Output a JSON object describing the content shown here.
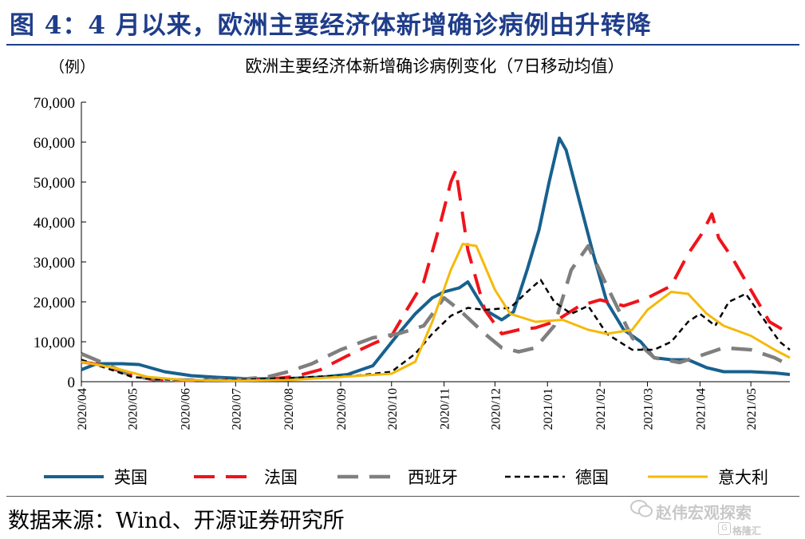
{
  "figure_title": "图 4：4 月以来，欧洲主要经济体新增确诊病例由升转降",
  "source_text": "数据来源：Wind、开源证券研究所",
  "watermark": {
    "main": "赵伟宏观探索",
    "sub": "格隆汇",
    "g_glyph": "G"
  },
  "colors": {
    "title": "#1f3d8a",
    "uk": "#17618e",
    "france": "#f0131a",
    "spain": "#7f7f7f",
    "germany": "#000000",
    "italy": "#f5b90a"
  },
  "chart_data": {
    "type": "line",
    "title": "欧洲主要经济体新增确诊病例变化（7日移动均值）",
    "ylabel": "（例）",
    "xlabel": "",
    "ylim": [
      0,
      70000
    ],
    "yticks": [
      0,
      10000,
      20000,
      30000,
      40000,
      50000,
      60000,
      70000
    ],
    "ytick_labels": [
      "0",
      "10,000",
      "20,000",
      "30,000",
      "40,000",
      "50,000",
      "60,000",
      "70,000"
    ],
    "xlim": [
      "2020-04-01",
      "2021-05-24"
    ],
    "xtick_labels": [
      "2020/04",
      "2020/05",
      "2020/06",
      "2020/07",
      "2020/08",
      "2020/09",
      "2020/10",
      "2020/11",
      "2020/12",
      "2021/01",
      "2021/02",
      "2021/03",
      "2021/04",
      "2021/05"
    ],
    "grid": false,
    "legend_position": "bottom",
    "series": [
      {
        "name": "英国",
        "key": "uk",
        "dash": "solid",
        "points": [
          [
            "2020-04-01",
            3000
          ],
          [
            "2020-04-10",
            4500
          ],
          [
            "2020-04-25",
            4500
          ],
          [
            "2020-05-05",
            4300
          ],
          [
            "2020-05-20",
            2500
          ],
          [
            "2020-06-05",
            1500
          ],
          [
            "2020-06-20",
            1100
          ],
          [
            "2020-07-10",
            700
          ],
          [
            "2020-08-01",
            800
          ],
          [
            "2020-08-20",
            1100
          ],
          [
            "2020-09-05",
            1800
          ],
          [
            "2020-09-20",
            4000
          ],
          [
            "2020-10-05",
            12000
          ],
          [
            "2020-10-15",
            17000
          ],
          [
            "2020-10-25",
            21000
          ],
          [
            "2020-11-01",
            22500
          ],
          [
            "2020-11-10",
            23500
          ],
          [
            "2020-11-15",
            25000
          ],
          [
            "2020-11-25",
            18000
          ],
          [
            "2020-12-05",
            15500
          ],
          [
            "2020-12-12",
            17500
          ],
          [
            "2020-12-20",
            28000
          ],
          [
            "2020-12-27",
            38000
          ],
          [
            "2021-01-02",
            50000
          ],
          [
            "2021-01-08",
            61000
          ],
          [
            "2021-01-12",
            58000
          ],
          [
            "2021-01-20",
            45000
          ],
          [
            "2021-01-28",
            32000
          ],
          [
            "2021-02-05",
            20000
          ],
          [
            "2021-02-15",
            13000
          ],
          [
            "2021-02-25",
            10000
          ],
          [
            "2021-03-05",
            6000
          ],
          [
            "2021-03-15",
            5500
          ],
          [
            "2021-03-25",
            5500
          ],
          [
            "2021-04-05",
            3500
          ],
          [
            "2021-04-15",
            2500
          ],
          [
            "2021-05-01",
            2500
          ],
          [
            "2021-05-15",
            2200
          ],
          [
            "2021-05-24",
            1800
          ]
        ]
      },
      {
        "name": "法国",
        "key": "france",
        "dash": "long",
        "points": [
          [
            "2020-04-01",
            5000
          ],
          [
            "2020-04-15",
            4000
          ],
          [
            "2020-05-01",
            1500
          ],
          [
            "2020-05-15",
            400
          ],
          [
            "2020-06-01",
            300
          ],
          [
            "2020-07-01",
            500
          ],
          [
            "2020-07-20",
            600
          ],
          [
            "2020-08-05",
            1300
          ],
          [
            "2020-08-20",
            3000
          ],
          [
            "2020-09-05",
            6500
          ],
          [
            "2020-09-20",
            9500
          ],
          [
            "2020-10-01",
            11500
          ],
          [
            "2020-10-10",
            18000
          ],
          [
            "2020-10-20",
            25000
          ],
          [
            "2020-10-30",
            40000
          ],
          [
            "2020-11-05",
            50000
          ],
          [
            "2020-11-08",
            53000
          ],
          [
            "2020-11-15",
            33000
          ],
          [
            "2020-11-25",
            18000
          ],
          [
            "2020-12-05",
            12000
          ],
          [
            "2020-12-15",
            13000
          ],
          [
            "2020-12-25",
            13500
          ],
          [
            "2021-01-05",
            15000
          ],
          [
            "2021-01-20",
            19000
          ],
          [
            "2021-02-01",
            20500
          ],
          [
            "2021-02-15",
            19000
          ],
          [
            "2021-03-01",
            21000
          ],
          [
            "2021-03-15",
            24000
          ],
          [
            "2021-03-25",
            32000
          ],
          [
            "2021-04-02",
            37000
          ],
          [
            "2021-04-08",
            42000
          ],
          [
            "2021-04-12",
            36000
          ],
          [
            "2021-04-20",
            31000
          ],
          [
            "2021-05-01",
            23000
          ],
          [
            "2021-05-12",
            15000
          ],
          [
            "2021-05-24",
            12000
          ]
        ]
      },
      {
        "name": "西班牙",
        "key": "spain",
        "dash": "long",
        "points": [
          [
            "2020-04-01",
            7000
          ],
          [
            "2020-04-15",
            4500
          ],
          [
            "2020-05-01",
            1500
          ],
          [
            "2020-05-15",
            600
          ],
          [
            "2020-06-01",
            400
          ],
          [
            "2020-07-01",
            500
          ],
          [
            "2020-07-20",
            1200
          ],
          [
            "2020-08-01",
            2500
          ],
          [
            "2020-08-15",
            4500
          ],
          [
            "2020-09-01",
            8000
          ],
          [
            "2020-09-20",
            11000
          ],
          [
            "2020-10-05",
            12000
          ],
          [
            "2020-10-20",
            14000
          ],
          [
            "2020-11-01",
            21000
          ],
          [
            "2020-11-10",
            18000
          ],
          [
            "2020-11-25",
            12000
          ],
          [
            "2020-12-05",
            8500
          ],
          [
            "2020-12-15",
            7500
          ],
          [
            "2020-12-25",
            8500
          ],
          [
            "2021-01-05",
            14000
          ],
          [
            "2021-01-15",
            28000
          ],
          [
            "2021-01-25",
            34000
          ],
          [
            "2021-02-05",
            24000
          ],
          [
            "2021-02-20",
            11000
          ],
          [
            "2021-03-05",
            6000
          ],
          [
            "2021-03-20",
            4800
          ],
          [
            "2021-04-01",
            6500
          ],
          [
            "2021-04-15",
            8500
          ],
          [
            "2021-05-01",
            8000
          ],
          [
            "2021-05-15",
            6000
          ],
          [
            "2021-05-24",
            4000
          ]
        ]
      },
      {
        "name": "德国",
        "key": "germany",
        "dash": "short",
        "points": [
          [
            "2020-04-01",
            5500
          ],
          [
            "2020-04-15",
            3500
          ],
          [
            "2020-05-01",
            1200
          ],
          [
            "2020-05-15",
            600
          ],
          [
            "2020-06-01",
            400
          ],
          [
            "2020-07-01",
            450
          ],
          [
            "2020-08-01",
            900
          ],
          [
            "2020-08-20",
            1300
          ],
          [
            "2020-09-10",
            1500
          ],
          [
            "2020-10-01",
            2500
          ],
          [
            "2020-10-15",
            7000
          ],
          [
            "2020-10-25",
            12000
          ],
          [
            "2020-11-05",
            16500
          ],
          [
            "2020-11-15",
            18500
          ],
          [
            "2020-11-25",
            18000
          ],
          [
            "2020-12-10",
            18500
          ],
          [
            "2020-12-20",
            22500
          ],
          [
            "2020-12-28",
            25500
          ],
          [
            "2021-01-05",
            20000
          ],
          [
            "2021-01-15",
            17000
          ],
          [
            "2021-01-25",
            19000
          ],
          [
            "2021-02-05",
            12000
          ],
          [
            "2021-02-20",
            8000
          ],
          [
            "2021-03-05",
            8000
          ],
          [
            "2021-03-15",
            10000
          ],
          [
            "2021-03-25",
            15000
          ],
          [
            "2021-04-01",
            17000
          ],
          [
            "2021-04-10",
            14000
          ],
          [
            "2021-04-18",
            20000
          ],
          [
            "2021-04-28",
            22000
          ],
          [
            "2021-05-08",
            16000
          ],
          [
            "2021-05-18",
            10000
          ],
          [
            "2021-05-24",
            8000
          ]
        ]
      },
      {
        "name": "意大利",
        "key": "italy",
        "dash": "solid",
        "points": [
          [
            "2020-04-01",
            5000
          ],
          [
            "2020-04-20",
            3500
          ],
          [
            "2020-05-10",
            1200
          ],
          [
            "2020-06-01",
            400
          ],
          [
            "2020-07-01",
            250
          ],
          [
            "2020-08-01",
            400
          ],
          [
            "2020-09-01",
            1200
          ],
          [
            "2020-10-01",
            2000
          ],
          [
            "2020-10-15",
            5000
          ],
          [
            "2020-10-25",
            15000
          ],
          [
            "2020-11-05",
            28000
          ],
          [
            "2020-11-12",
            34500
          ],
          [
            "2020-11-20",
            34000
          ],
          [
            "2020-12-01",
            23000
          ],
          [
            "2020-12-10",
            17000
          ],
          [
            "2020-12-25",
            15000
          ],
          [
            "2021-01-10",
            15500
          ],
          [
            "2021-01-25",
            13000
          ],
          [
            "2021-02-05",
            12000
          ],
          [
            "2021-02-20",
            13000
          ],
          [
            "2021-03-01",
            18000
          ],
          [
            "2021-03-15",
            22500
          ],
          [
            "2021-03-25",
            22000
          ],
          [
            "2021-04-05",
            17000
          ],
          [
            "2021-04-15",
            14000
          ],
          [
            "2021-05-01",
            11500
          ],
          [
            "2021-05-15",
            8000
          ],
          [
            "2021-05-24",
            6000
          ]
        ]
      }
    ]
  }
}
